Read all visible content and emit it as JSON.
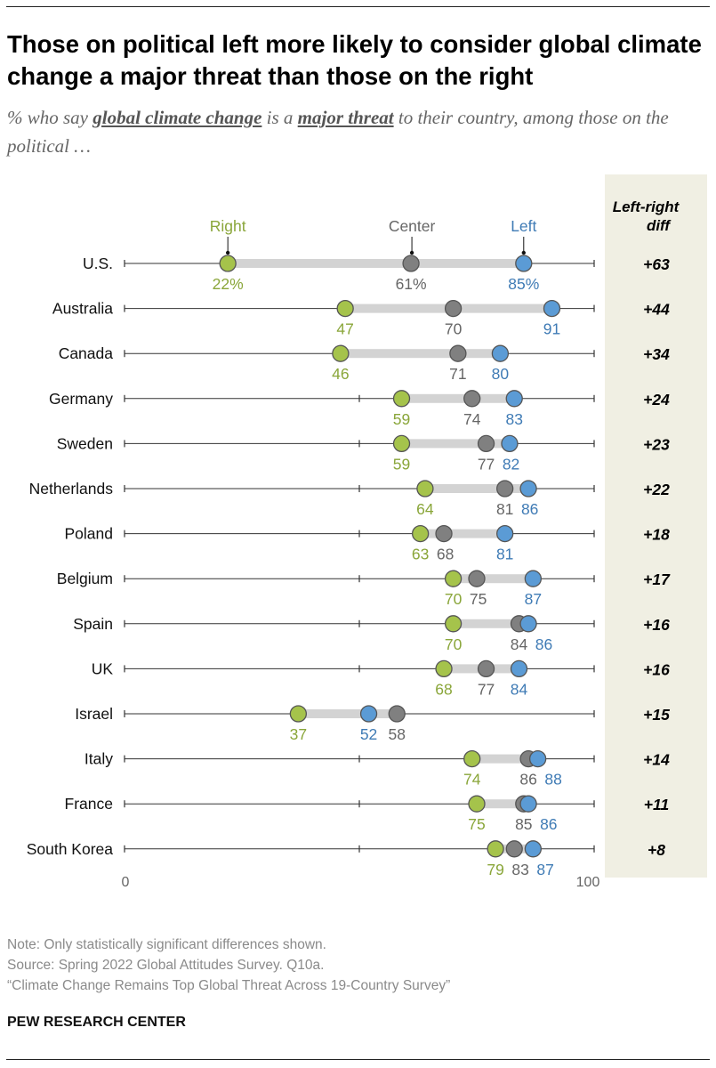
{
  "title": "Those on political left more likely to consider global climate change a major threat than those on the right",
  "subtitle": {
    "part1": "% who say ",
    "bold1": "global climate change",
    "part2": " is a ",
    "bold2": "major threat",
    "part3": " to their country, among those on the political …"
  },
  "notes": {
    "note": "Note: Only statistically significant differences shown.",
    "source": "Source: Spring 2022 Global Attitudes Survey. Q10a.",
    "report": "“Climate Change Remains Top Global Threat Across 19-Country Survey”"
  },
  "brand": "PEW RESEARCH CENTER",
  "colors": {
    "right": "#a5c34b",
    "center": "#808080",
    "left": "#5b9bd5",
    "right_text": "#8aa63a",
    "center_text": "#666666",
    "left_text": "#3f7bb5",
    "diff_panel": "#f0efe3",
    "range_bar": "#d3d3d3"
  },
  "chart_data": {
    "type": "dot",
    "xlim": [
      0,
      100
    ],
    "x_tick_labels": [
      "0",
      "100"
    ],
    "legend": {
      "right": "Right",
      "center": "Center",
      "left": "Left"
    },
    "diff_header": [
      "Left-right",
      "diff"
    ],
    "countries": [
      {
        "name": "U.S.",
        "right": 22,
        "center": 61,
        "left": 85,
        "diff": "+63",
        "labels": [
          "22%",
          "61%",
          "85%"
        ]
      },
      {
        "name": "Australia",
        "right": 47,
        "center": 70,
        "left": 91,
        "diff": "+44",
        "labels": [
          "47",
          "70",
          "91"
        ]
      },
      {
        "name": "Canada",
        "right": 46,
        "center": 71,
        "left": 80,
        "diff": "+34",
        "labels": [
          "46",
          "71",
          "80"
        ]
      },
      {
        "name": "Germany",
        "right": 59,
        "center": 74,
        "left": 83,
        "diff": "+24",
        "labels": [
          "59",
          "74",
          "83"
        ]
      },
      {
        "name": "Sweden",
        "right": 59,
        "center": 77,
        "left": 82,
        "diff": "+23",
        "labels": [
          "59",
          "77",
          "82"
        ]
      },
      {
        "name": "Netherlands",
        "right": 64,
        "center": 81,
        "left": 86,
        "diff": "+22",
        "labels": [
          "64",
          "81",
          "86"
        ]
      },
      {
        "name": "Poland",
        "right": 63,
        "center": 68,
        "left": 81,
        "diff": "+18",
        "labels": [
          "63",
          "68",
          "81"
        ]
      },
      {
        "name": "Belgium",
        "right": 70,
        "center": 75,
        "left": 87,
        "diff": "+17",
        "labels": [
          "70",
          "75",
          "87"
        ]
      },
      {
        "name": "Spain",
        "right": 70,
        "center": 84,
        "left": 86,
        "diff": "+16",
        "labels": [
          "70",
          "84",
          "86"
        ]
      },
      {
        "name": "UK",
        "right": 68,
        "center": 77,
        "left": 84,
        "diff": "+16",
        "labels": [
          "68",
          "77",
          "84"
        ]
      },
      {
        "name": "Israel",
        "right": 37,
        "center": 58,
        "left": 52,
        "diff": "+15",
        "labels": [
          "37",
          "58",
          "52"
        ]
      },
      {
        "name": "Italy",
        "right": 74,
        "center": 86,
        "left": 88,
        "diff": "+14",
        "labels": [
          "74",
          "86",
          "88"
        ]
      },
      {
        "name": "France",
        "right": 75,
        "center": 85,
        "left": 86,
        "diff": "+11",
        "labels": [
          "75",
          "85",
          "86"
        ]
      },
      {
        "name": "South Korea",
        "right": 79,
        "center": 83,
        "left": 87,
        "diff": "+8",
        "labels": [
          "79",
          "83",
          "87"
        ]
      }
    ]
  }
}
